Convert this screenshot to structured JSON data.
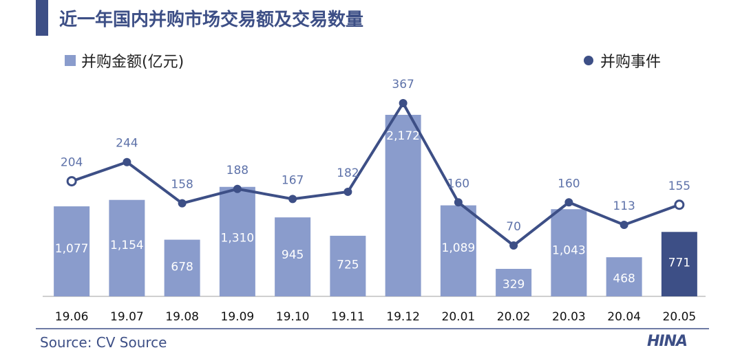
{
  "title": "近一年国内并购市场交易额及交易数量",
  "source": "Source: CV Source",
  "logo_text": "HINA",
  "colors": {
    "bar": "#8a9ccc",
    "bar_highlight": "#3d4f86",
    "line": "#3d4f86",
    "accent": "#3d4f86"
  },
  "chart_data": {
    "type": "bar",
    "categories": [
      "19.06",
      "19.07",
      "19.08",
      "19.09",
      "19.10",
      "19.11",
      "19.12",
      "20.01",
      "20.02",
      "20.03",
      "20.04",
      "20.05"
    ],
    "series": [
      {
        "name": "并购金额(亿元)",
        "type": "bar",
        "values": [
          1077,
          1154,
          678,
          1310,
          945,
          725,
          2172,
          1089,
          329,
          1043,
          468,
          771
        ],
        "labels": [
          "1,077",
          "1,154",
          "678",
          "1,310",
          "945",
          "725",
          "2,172",
          "1,089",
          "329",
          "1,043",
          "468",
          "771"
        ]
      },
      {
        "name": "并购事件",
        "type": "line",
        "values": [
          204,
          244,
          158,
          188,
          167,
          182,
          367,
          160,
          70,
          160,
          113,
          155
        ],
        "labels": [
          "204",
          "244",
          "158",
          "188",
          "167",
          "182",
          "367",
          "160",
          "70",
          "160",
          "113",
          "155"
        ]
      }
    ],
    "legend_placement": "top",
    "grid": false
  }
}
